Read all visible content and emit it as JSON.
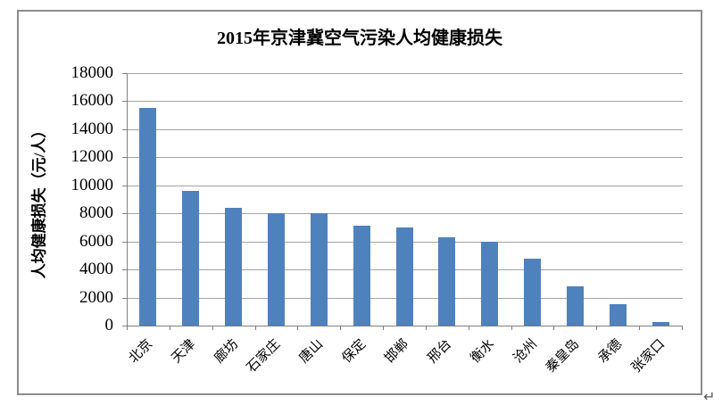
{
  "document": {
    "return_mark": "↵"
  },
  "chart_data": {
    "type": "bar",
    "title": "2015年京津冀空气污染人均健康损失",
    "ylabel": "人均健康损失（元/人）",
    "xlabel": "",
    "categories": [
      "北京",
      "天津",
      "廊坊",
      "石家庄",
      "唐山",
      "保定",
      "邯郸",
      "邢台",
      "衡水",
      "沧州",
      "秦皇岛",
      "承德",
      "张家口"
    ],
    "values": [
      15500,
      9600,
      8400,
      8000,
      8000,
      7100,
      7000,
      6300,
      6000,
      4800,
      2800,
      1500,
      250
    ],
    "ylim": [
      0,
      18000
    ],
    "ytick_step": 2000,
    "yticks": [
      0,
      2000,
      4000,
      6000,
      8000,
      10000,
      12000,
      14000,
      16000,
      18000
    ],
    "grid": true,
    "legend_position": "none",
    "colors": {
      "bar": "#4f81bd",
      "gridline": "#a3a3a3",
      "axis": "#808080",
      "frame_border": "#8c8c8c",
      "text": "#000000"
    }
  }
}
